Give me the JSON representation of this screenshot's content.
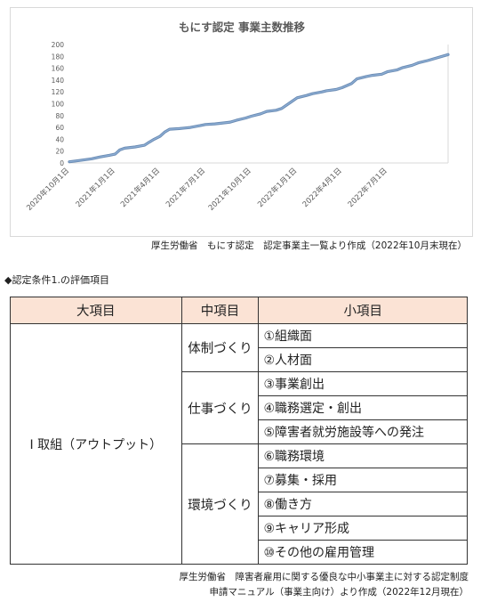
{
  "chart_data": {
    "type": "line",
    "title": "もにす認定 事業主数推移",
    "xlabel": "",
    "ylabel": "",
    "ylim": [
      0,
      200
    ],
    "yticks": [
      0,
      20,
      40,
      60,
      80,
      100,
      120,
      140,
      160,
      180,
      200
    ],
    "xlim": [
      "2020-10-01",
      "2022-10-31"
    ],
    "xticks": [
      "2020年10月1日",
      "2021年1月1日",
      "2021年4月1日",
      "2021年7月1日",
      "2021年10月1日",
      "2022年1月1日",
      "2022年4月1日",
      "2022年7月1日"
    ],
    "grid": false,
    "series_color": "#7393b9",
    "series": [
      {
        "x": [
          "2020-10-01",
          "2020-10-20",
          "2020-11-15",
          "2020-12-01",
          "2020-12-20",
          "2021-01-01",
          "2021-01-10",
          "2021-01-20",
          "2021-02-10",
          "2021-03-01",
          "2021-03-10",
          "2021-03-20",
          "2021-04-01",
          "2021-04-10",
          "2021-04-20",
          "2021-05-10",
          "2021-05-20",
          "2021-06-01",
          "2021-06-20",
          "2021-07-01",
          "2021-07-20",
          "2021-08-01",
          "2021-08-20",
          "2021-09-01",
          "2021-09-20",
          "2021-10-01",
          "2021-10-20",
          "2021-11-01",
          "2021-11-20",
          "2021-12-01",
          "2021-12-20",
          "2022-01-01",
          "2022-01-20",
          "2022-02-01",
          "2022-02-20",
          "2022-03-01",
          "2022-03-20",
          "2022-04-01",
          "2022-04-20",
          "2022-05-01",
          "2022-05-20",
          "2022-06-01",
          "2022-06-20",
          "2022-07-01",
          "2022-07-20",
          "2022-08-01",
          "2022-08-20",
          "2022-09-01",
          "2022-09-20",
          "2022-10-31"
        ],
        "values": [
          2,
          4,
          7,
          10,
          13,
          15,
          22,
          25,
          27,
          30,
          35,
          40,
          45,
          52,
          57,
          58,
          59,
          60,
          63,
          65,
          66,
          67,
          69,
          72,
          76,
          79,
          83,
          87,
          89,
          92,
          103,
          110,
          114,
          117,
          120,
          122,
          124,
          127,
          134,
          142,
          146,
          148,
          150,
          154,
          157,
          161,
          165,
          169,
          173,
          183
        ]
      }
    ]
  },
  "source_chart": "厚生労働省　もにす認定　認定事業主一覧より作成（2022年10月末現在）",
  "section_heading": "◆認定条件1.の評価項目",
  "table": {
    "headers": [
      "大項目",
      "中項目",
      "小項目"
    ],
    "major": "Ⅰ 取組（アウトプット）",
    "groups": [
      {
        "name": "体制づくり",
        "items": [
          "①組織面",
          "②人材面"
        ]
      },
      {
        "name": "仕事づくり",
        "items": [
          "③事業創出",
          "④職務選定・創出",
          "⑤障害者就労施設等への発注"
        ]
      },
      {
        "name": "環境づくり",
        "items": [
          "⑥職務環境",
          "⑦募集・採用",
          "⑧働き方",
          "⑨キャリア形成",
          "⑩その他の雇用管理"
        ]
      }
    ]
  },
  "source_table": {
    "line1": "厚生労働省　障害者雇用に関する優良な中小事業主に対する認定制度",
    "line2": "申請マニュアル（事業主向け）より作成（2022年12月現在）"
  }
}
